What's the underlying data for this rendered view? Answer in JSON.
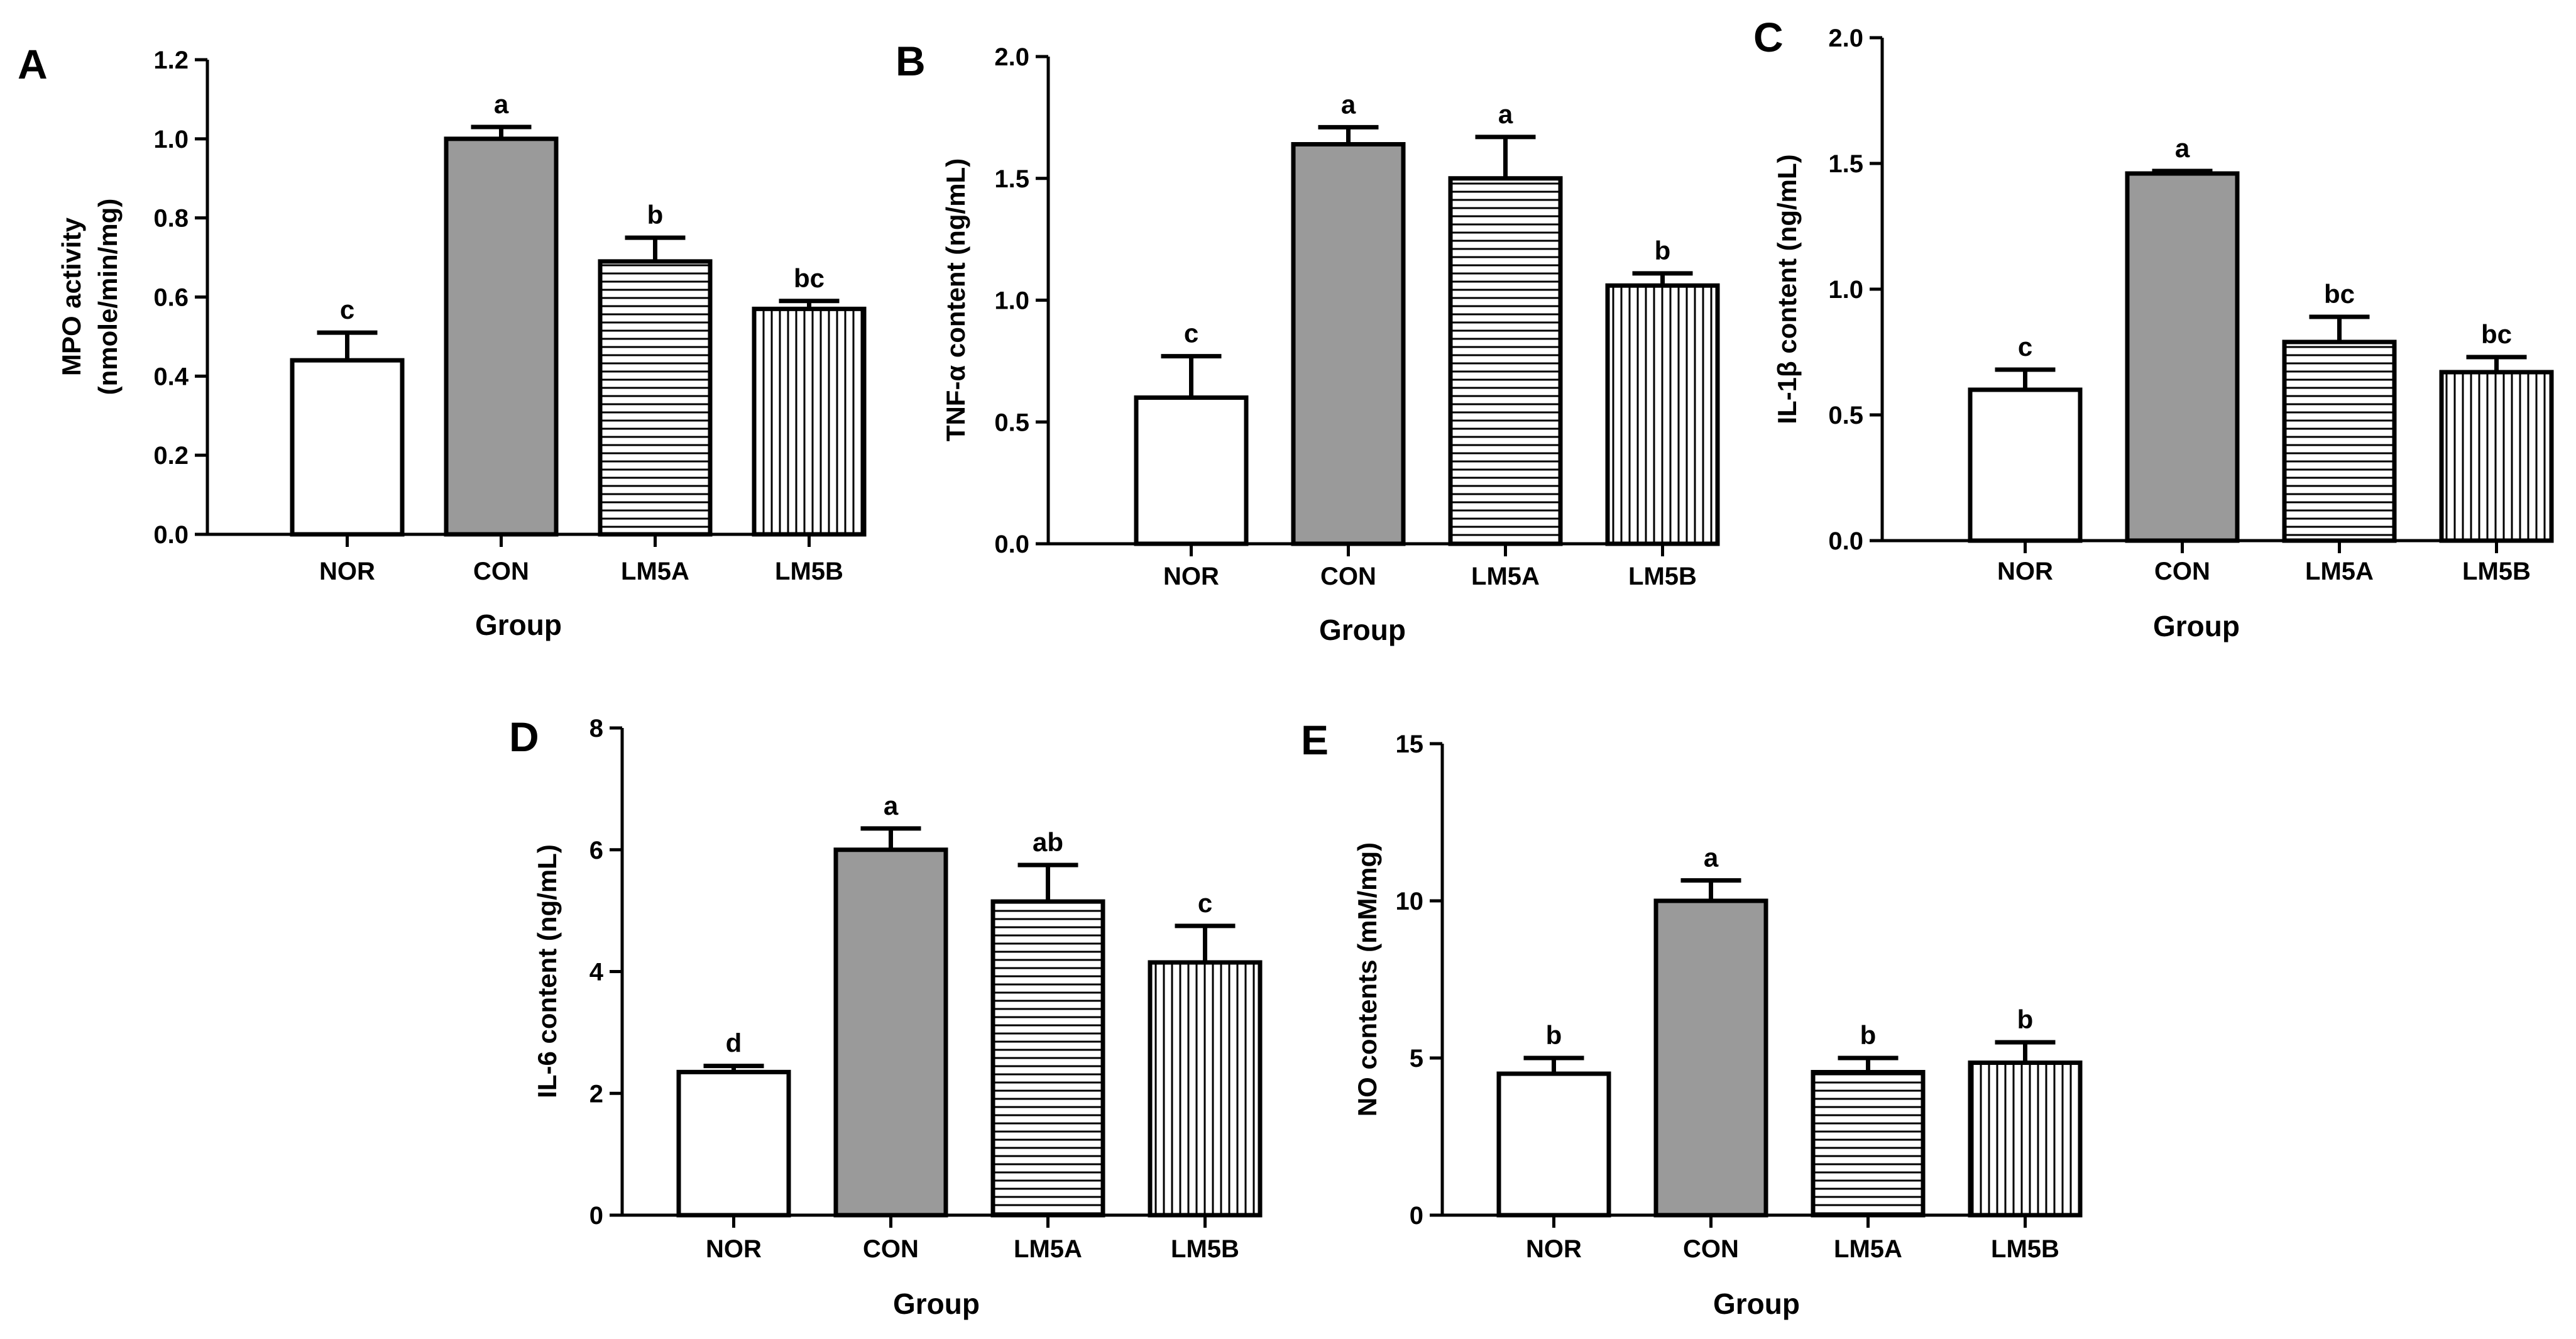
{
  "chart_data": [
    {
      "panel": "A",
      "type": "bar",
      "categories": [
        "NOR",
        "CON",
        "LM5A",
        "LM5B"
      ],
      "values": [
        0.44,
        1.0,
        0.69,
        0.57
      ],
      "errors": [
        0.07,
        0.03,
        0.06,
        0.02
      ],
      "sig_labels": [
        "c",
        "a",
        "b",
        "bc"
      ],
      "ylim": [
        0,
        1.2
      ],
      "yticks": [
        0.0,
        0.2,
        0.4,
        0.6,
        0.8,
        1.0,
        1.2
      ],
      "ytick_labels": [
        "0.0",
        "0.2",
        "0.4",
        "0.6",
        "0.8",
        "1.0",
        "1.2"
      ],
      "ylabel": "MPO activity",
      "ylabel2": "(nmole/min/mg)",
      "xlabel": "Group"
    },
    {
      "panel": "B",
      "type": "bar",
      "categories": [
        "NOR",
        "CON",
        "LM5A",
        "LM5B"
      ],
      "values": [
        0.6,
        1.64,
        1.5,
        1.06
      ],
      "errors": [
        0.17,
        0.07,
        0.17,
        0.05
      ],
      "sig_labels": [
        "c",
        "a",
        "a",
        "b"
      ],
      "ylim": [
        0,
        2.0
      ],
      "yticks": [
        0.0,
        0.5,
        1.0,
        1.5,
        2.0
      ],
      "ytick_labels": [
        "0.0",
        "0.5",
        "1.0",
        "1.5",
        "2.0"
      ],
      "ylabel": "TNF-α content (ng/mL)",
      "xlabel": "Group"
    },
    {
      "panel": "C",
      "type": "bar",
      "categories": [
        "NOR",
        "CON",
        "LM5A",
        "LM5B"
      ],
      "values": [
        0.6,
        1.46,
        0.79,
        0.67
      ],
      "errors": [
        0.08,
        0.01,
        0.1,
        0.06
      ],
      "sig_labels": [
        "c",
        "a",
        "bc",
        "bc"
      ],
      "ylim": [
        0,
        2.0
      ],
      "yticks": [
        0.0,
        0.5,
        1.0,
        1.5,
        2.0
      ],
      "ytick_labels": [
        "0.0",
        "0.5",
        "1.0",
        "1.5",
        "2.0"
      ],
      "ylabel": "IL-1β content (ng/mL)",
      "xlabel": "Group"
    },
    {
      "panel": "D",
      "type": "bar",
      "categories": [
        "NOR",
        "CON",
        "LM5A",
        "LM5B"
      ],
      "values": [
        2.35,
        6.0,
        5.15,
        4.15
      ],
      "errors": [
        0.1,
        0.35,
        0.6,
        0.6
      ],
      "sig_labels": [
        "d",
        "a",
        "ab",
        "c"
      ],
      "ylim": [
        0,
        8
      ],
      "yticks": [
        0,
        2,
        4,
        6,
        8
      ],
      "ytick_labels": [
        "0",
        "2",
        "4",
        "6",
        "8"
      ],
      "ylabel": "IL-6 content (ng/mL)",
      "xlabel": "Group"
    },
    {
      "panel": "E",
      "type": "bar",
      "categories": [
        "NOR",
        "CON",
        "LM5A",
        "LM5B"
      ],
      "values": [
        4.5,
        10.0,
        4.55,
        4.85
      ],
      "errors": [
        0.5,
        0.65,
        0.45,
        0.65
      ],
      "sig_labels": [
        "b",
        "a",
        "b",
        "b"
      ],
      "ylim": [
        0,
        15
      ],
      "yticks": [
        0,
        5,
        10,
        15
      ],
      "ytick_labels": [
        "0",
        "5",
        "10",
        "15"
      ],
      "ylabel": "NO contents (mM/mg)",
      "xlabel": "Group"
    }
  ],
  "style": {
    "bar_fills": [
      "#ffffff",
      "#9a9a9a",
      "url(#hstripes)",
      "url(#vstripes)"
    ],
    "stroke_color": "#000000"
  }
}
